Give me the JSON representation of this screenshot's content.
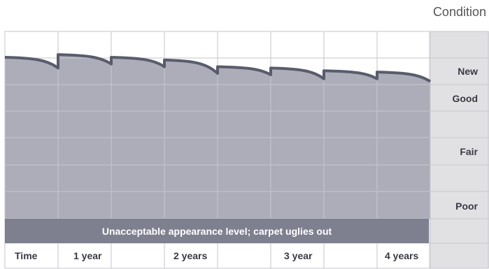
{
  "chart_data": {
    "type": "area",
    "title": "",
    "y_axis_title": "Condition",
    "y_labels": [
      "New",
      "Good",
      "Fair",
      "Poor"
    ],
    "x_labels": [
      "Time",
      "1 year",
      "2 years",
      "3 year",
      "4 years"
    ],
    "band_label": "Unacceptable appearance level; carpet uglies out",
    "series": [
      {
        "values": [
          {
            "x": 0.0,
            "y": 6.0
          },
          {
            "x": 0.5,
            "y": 5.6
          },
          {
            "x": 0.5,
            "y": 6.1
          },
          {
            "x": 1.0,
            "y": 5.75
          },
          {
            "x": 1.0,
            "y": 6.0
          },
          {
            "x": 1.5,
            "y": 5.65
          },
          {
            "x": 1.5,
            "y": 5.9
          },
          {
            "x": 2.0,
            "y": 5.4
          },
          {
            "x": 2.0,
            "y": 5.65
          },
          {
            "x": 2.5,
            "y": 5.35
          },
          {
            "x": 2.5,
            "y": 5.6
          },
          {
            "x": 3.0,
            "y": 5.2
          },
          {
            "x": 3.0,
            "y": 5.5
          },
          {
            "x": 3.5,
            "y": 5.2
          },
          {
            "x": 3.5,
            "y": 5.45
          },
          {
            "x": 4.0,
            "y": 5.1
          }
        ]
      }
    ],
    "colors": {
      "area": "#acadb8",
      "line": "#585c6c",
      "band": "#7e8090",
      "grid": "#c6c6ce",
      "right_col": "#e1e1e4"
    }
  }
}
